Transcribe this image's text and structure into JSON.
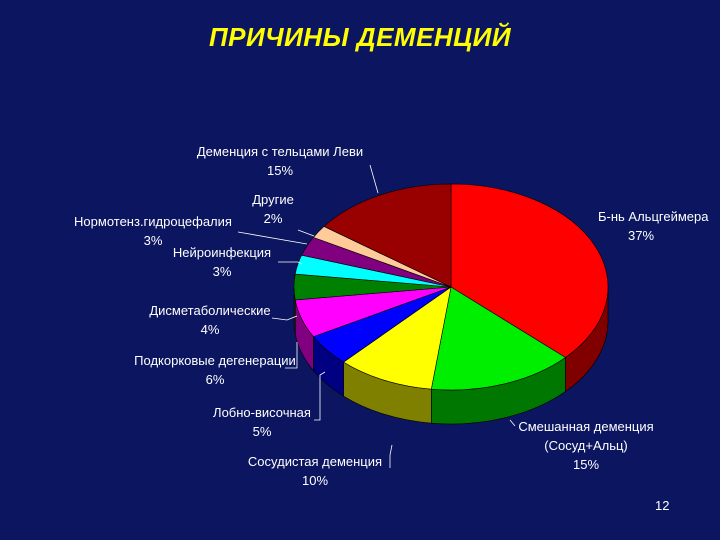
{
  "slide": {
    "title": "ПРИЧИНЫ ДЕМЕНЦИЙ",
    "page_number": "12",
    "background": "#0b1560",
    "title_color": "#ffff00"
  },
  "chart_data": {
    "type": "pie",
    "style": "3d",
    "title": "ПРИЧИНЫ ДЕМЕНЦИЙ",
    "slices": [
      {
        "key": "alz",
        "lines": [
          "Б-нь Альцгеймера",
          "37%"
        ],
        "value": 37,
        "color": "#ff0000"
      },
      {
        "key": "mixed",
        "lines": [
          "Смешанная деменция",
          "(Сосуд+Альц)",
          "15%"
        ],
        "value": 15,
        "color": "#00ee00"
      },
      {
        "key": "vascular",
        "lines": [
          "Сосудистая деменция",
          "10%"
        ],
        "value": 10,
        "color": "#ffff00"
      },
      {
        "key": "frontotemporal",
        "lines": [
          "Лобно-височная",
          "5%"
        ],
        "value": 5,
        "color": "#0000ff"
      },
      {
        "key": "subcortical",
        "lines": [
          "Подкорковые дегенерации",
          "6%"
        ],
        "value": 6,
        "color": "#ff00ff"
      },
      {
        "key": "dysmetabolic",
        "lines": [
          "Дисметаболические",
          "4%"
        ],
        "value": 4,
        "color": "#008000"
      },
      {
        "key": "neuroinfection",
        "lines": [
          "Нейроинфекция",
          "3%"
        ],
        "value": 3,
        "color": "#00ffff"
      },
      {
        "key": "nph",
        "lines": [
          "Нормотенз.гидроцефалия",
          "3%"
        ],
        "value": 3,
        "color": "#800080"
      },
      {
        "key": "other",
        "lines": [
          "Другие",
          "2%"
        ],
        "value": 2,
        "color": "#ffcc99"
      },
      {
        "key": "lewy",
        "lines": [
          "Деменция с тельцами Леви",
          "15%"
        ],
        "value": 15,
        "color": "#990000"
      }
    ]
  }
}
